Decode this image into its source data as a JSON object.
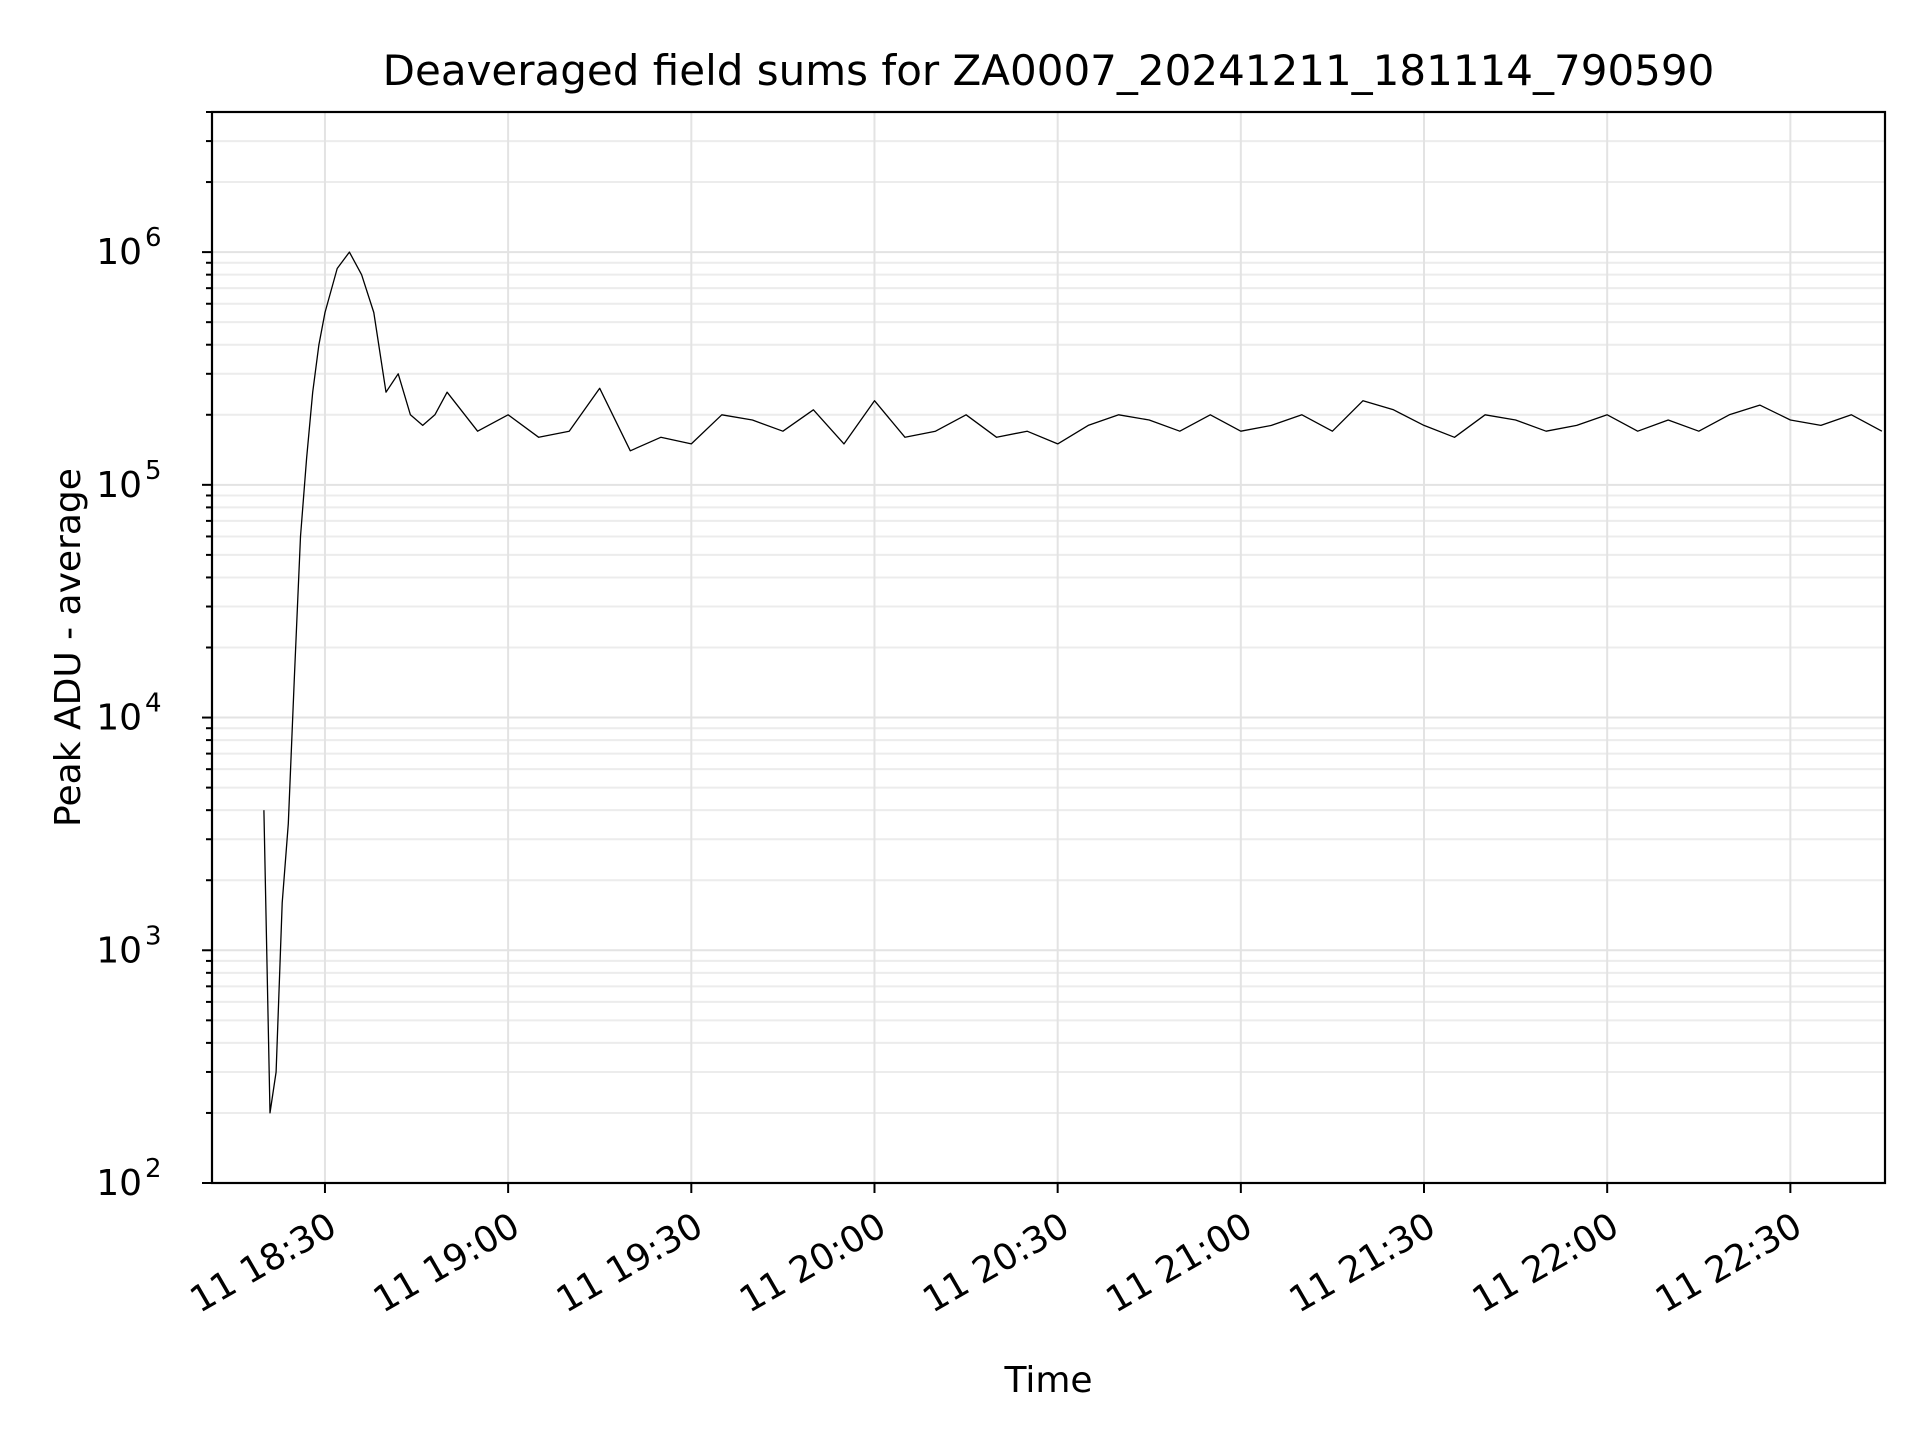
{
  "chart_data": {
    "type": "line",
    "title": "Deaveraged field sums for ZA0007_20241211_181114_790590",
    "xlabel": "Time",
    "ylabel": "Peak ADU - average",
    "yscale": "log",
    "ylim": [
      100,
      4000000
    ],
    "xlim": [
      "2024-12-11 18:11:30",
      "2024-12-11 22:45:30"
    ],
    "x_tick_labels": [
      "11 18:30",
      "11 19:00",
      "11 19:30",
      "11 20:00",
      "11 20:30",
      "11 21:00",
      "11 21:30",
      "11 22:00",
      "11 22:30"
    ],
    "y_tick_labels": [
      {
        "base": "10",
        "exp": "2"
      },
      {
        "base": "10",
        "exp": "3"
      },
      {
        "base": "10",
        "exp": "4"
      },
      {
        "base": "10",
        "exp": "5"
      },
      {
        "base": "10",
        "exp": "6"
      }
    ],
    "grid": true,
    "line_color": "#000000",
    "series": [
      {
        "x": [
          "2024-12-11 18:20",
          "2024-12-11 18:21",
          "2024-12-11 18:22",
          "2024-12-11 18:23",
          "2024-12-11 18:24",
          "2024-12-11 18:25",
          "2024-12-11 18:26",
          "2024-12-11 18:27",
          "2024-12-11 18:28",
          "2024-12-11 18:29",
          "2024-12-11 18:30",
          "2024-12-11 18:32",
          "2024-12-11 18:34",
          "2024-12-11 18:36",
          "2024-12-11 18:38",
          "2024-12-11 18:40",
          "2024-12-11 18:42",
          "2024-12-11 18:44",
          "2024-12-11 18:46",
          "2024-12-11 18:48",
          "2024-12-11 18:50",
          "2024-12-11 18:55",
          "2024-12-11 19:00",
          "2024-12-11 19:05",
          "2024-12-11 19:10",
          "2024-12-11 19:15",
          "2024-12-11 19:20",
          "2024-12-11 19:25",
          "2024-12-11 19:30",
          "2024-12-11 19:35",
          "2024-12-11 19:40",
          "2024-12-11 19:45",
          "2024-12-11 19:50",
          "2024-12-11 19:55",
          "2024-12-11 20:00",
          "2024-12-11 20:05",
          "2024-12-11 20:10",
          "2024-12-11 20:15",
          "2024-12-11 20:20",
          "2024-12-11 20:25",
          "2024-12-11 20:30",
          "2024-12-11 20:35",
          "2024-12-11 20:40",
          "2024-12-11 20:45",
          "2024-12-11 20:50",
          "2024-12-11 20:55",
          "2024-12-11 21:00",
          "2024-12-11 21:05",
          "2024-12-11 21:10",
          "2024-12-11 21:15",
          "2024-12-11 21:20",
          "2024-12-11 21:25",
          "2024-12-11 21:30",
          "2024-12-11 21:35",
          "2024-12-11 21:40",
          "2024-12-11 21:45",
          "2024-12-11 21:50",
          "2024-12-11 21:55",
          "2024-12-11 22:00",
          "2024-12-11 22:05",
          "2024-12-11 22:10",
          "2024-12-11 22:15",
          "2024-12-11 22:20",
          "2024-12-11 22:25",
          "2024-12-11 22:30",
          "2024-12-11 22:35",
          "2024-12-11 22:40",
          "2024-12-11 22:45"
        ],
        "values": [
          4000,
          200,
          300,
          1600,
          3500,
          15000,
          60000,
          130000,
          250000,
          400000,
          550000,
          850000,
          1000000,
          800000,
          550000,
          250000,
          300000,
          200000,
          180000,
          200000,
          250000,
          170000,
          200000,
          160000,
          170000,
          260000,
          140000,
          160000,
          150000,
          200000,
          190000,
          170000,
          210000,
          150000,
          230000,
          160000,
          170000,
          200000,
          160000,
          170000,
          150000,
          180000,
          200000,
          190000,
          170000,
          200000,
          170000,
          180000,
          200000,
          170000,
          230000,
          210000,
          180000,
          160000,
          200000,
          190000,
          170000,
          180000,
          200000,
          170000,
          190000,
          170000,
          200000,
          220000,
          190000,
          180000,
          200000,
          170000
        ]
      }
    ]
  }
}
